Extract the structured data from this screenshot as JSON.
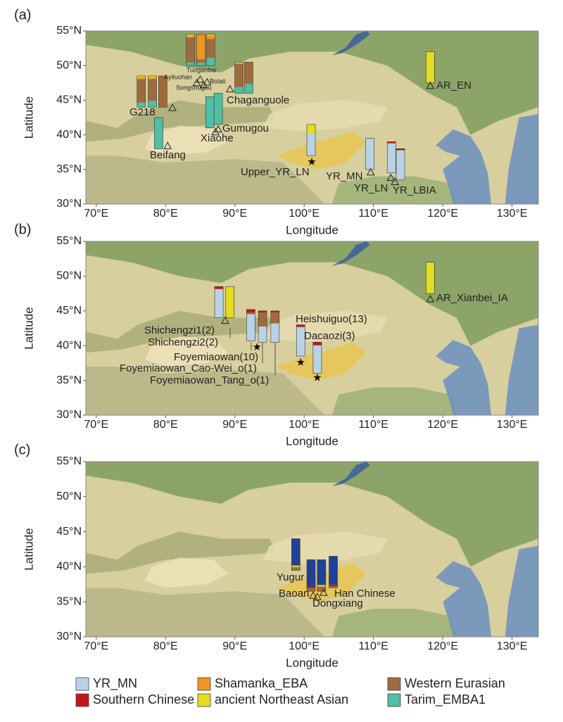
{
  "legend": [
    {
      "name": "YR_MN",
      "color": "#b9d3e6"
    },
    {
      "name": "Shamanka_EBA",
      "color": "#f39321"
    },
    {
      "name": "Western Eurasian",
      "color": "#a06b3c"
    },
    {
      "name": "Southern Chinese",
      "color": "#c4161c"
    },
    {
      "name": "ancient Northeast Asian",
      "color": "#e3dc21"
    },
    {
      "name": "Tarim_EMBA1",
      "color": "#4fbfa5"
    },
    {
      "name": null,
      "color": "#20409a"
    }
  ],
  "chart_data": [
    {
      "type": "map-bar",
      "panel": "(a)",
      "xlabel": "Longitude",
      "ylabel": "Latitude",
      "xlim": [
        68.5,
        133.8
      ],
      "ylim": [
        30,
        55
      ],
      "xticks": [
        {
          "value": 70,
          "label": "70°E"
        },
        {
          "value": 80,
          "label": "80°E"
        },
        {
          "value": 90,
          "label": "90°E"
        },
        {
          "value": 100,
          "label": "100°E"
        },
        {
          "value": 110,
          "label": "110°E"
        },
        {
          "value": 120,
          "label": "120°E"
        },
        {
          "value": 130,
          "label": "130°E"
        }
      ],
      "yticks": [
        {
          "value": 30,
          "label": "30°N"
        },
        {
          "value": 35,
          "label": "35°N"
        },
        {
          "value": 40,
          "label": "40°N"
        },
        {
          "value": 45,
          "label": "45°N"
        },
        {
          "value": 50,
          "label": "50°N"
        },
        {
          "value": 55,
          "label": "55°N"
        }
      ],
      "labels": [
        "Tuoganbai",
        "Ayituohan",
        "Bolati",
        "Songshugou",
        "G218",
        "Beifang",
        "Xiaohe",
        "Gumugou",
        "Chaganguole",
        "Upper_YR_LN",
        "YR_MN",
        "YR_LN",
        "YR_LBIA",
        "AR_EN"
      ],
      "markers": [
        {
          "x": 85,
          "y": 48,
          "shape": "triangle"
        },
        {
          "x": 84.5,
          "y": 47.5,
          "shape": "triangle"
        },
        {
          "x": 86,
          "y": 47.6,
          "shape": "triangle"
        },
        {
          "x": 85.5,
          "y": 47.2,
          "shape": "triangle"
        },
        {
          "x": 81,
          "y": 43.9,
          "shape": "triangle"
        },
        {
          "x": 80.3,
          "y": 38.4,
          "shape": "triangle"
        },
        {
          "x": 87.2,
          "y": 40.4,
          "shape": "triangle"
        },
        {
          "x": 87.6,
          "y": 40.8,
          "shape": "triangle"
        },
        {
          "x": 89.3,
          "y": 46.6,
          "shape": "triangle"
        },
        {
          "x": 101.1,
          "y": 36.1,
          "shape": "star"
        },
        {
          "x": 109.6,
          "y": 34.6,
          "shape": "triangle"
        },
        {
          "x": 112.5,
          "y": 33.8,
          "shape": "triangle"
        },
        {
          "x": 113.1,
          "y": 33.2,
          "shape": "triangle"
        },
        {
          "x": 118.2,
          "y": 47.1,
          "shape": "triangle"
        }
      ],
      "bars": [
        {
          "x": 76.5,
          "y": 44,
          "values": [
            0,
            0.05,
            0.75,
            0,
            0.05,
            0.15,
            0
          ]
        },
        {
          "x": 78.1,
          "y": 44,
          "values": [
            0,
            0.05,
            0.7,
            0,
            0.05,
            0.2,
            0
          ]
        },
        {
          "x": 79.6,
          "y": 44,
          "values": [
            0,
            0,
            1,
            0,
            0,
            0,
            0
          ]
        },
        {
          "x": 79.0,
          "y": 38,
          "values": [
            0,
            0,
            0,
            0,
            0,
            1,
            0
          ]
        },
        {
          "x": 83.6,
          "y": 50,
          "values": [
            0,
            0.05,
            0.8,
            0,
            0.05,
            0.1,
            0
          ]
        },
        {
          "x": 85.1,
          "y": 50,
          "values": [
            0,
            0.8,
            0.1,
            0,
            0,
            0.1,
            0
          ]
        },
        {
          "x": 86.5,
          "y": 50,
          "values": [
            0,
            0.1,
            0.6,
            0,
            0.05,
            0.25,
            0
          ]
        },
        {
          "x": 86.4,
          "y": 41,
          "values": [
            0,
            0,
            0,
            0,
            0,
            1,
            0
          ]
        },
        {
          "x": 87.6,
          "y": 41.5,
          "values": [
            0,
            0,
            0,
            0,
            0,
            1,
            0
          ]
        },
        {
          "x": 90.6,
          "y": 46,
          "values": [
            0,
            0,
            0.75,
            0,
            0.05,
            0.2,
            0
          ]
        },
        {
          "x": 92.0,
          "y": 46,
          "values": [
            0,
            0,
            0.7,
            0,
            0,
            0.3,
            0
          ]
        },
        {
          "x": 101.0,
          "y": 37,
          "values": [
            0.7,
            0,
            0,
            0,
            0.3,
            0,
            0
          ]
        },
        {
          "x": 109.5,
          "y": 35,
          "values": [
            1,
            0,
            0,
            0,
            0,
            0,
            0
          ]
        },
        {
          "x": 112.6,
          "y": 34.5,
          "values": [
            0.95,
            0,
            0,
            0.05,
            0,
            0,
            0
          ]
        },
        {
          "x": 113.9,
          "y": 33.5,
          "values": [
            0.95,
            0,
            0,
            0.05,
            0,
            0,
            0
          ]
        },
        {
          "x": 118.2,
          "y": 47.5,
          "values": [
            0,
            0,
            0,
            0,
            1,
            0,
            0
          ]
        }
      ]
    },
    {
      "type": "map-bar",
      "panel": "(b)",
      "xlabel": "Longitude",
      "ylabel": "Latitude",
      "xlim": [
        68.5,
        133.8
      ],
      "ylim": [
        30,
        55
      ],
      "xticks": [
        {
          "value": 70,
          "label": "70°E"
        },
        {
          "value": 80,
          "label": "80°E"
        },
        {
          "value": 90,
          "label": "90°E"
        },
        {
          "value": 100,
          "label": "100°E"
        },
        {
          "value": 110,
          "label": "110°E"
        },
        {
          "value": 120,
          "label": "120°E"
        },
        {
          "value": 130,
          "label": "130°E"
        }
      ],
      "yticks": [
        {
          "value": 30,
          "label": "30°N"
        },
        {
          "value": 35,
          "label": "35°N"
        },
        {
          "value": 40,
          "label": "40°N"
        },
        {
          "value": 45,
          "label": "45°N"
        },
        {
          "value": 50,
          "label": "50°N"
        },
        {
          "value": 55,
          "label": "55°N"
        }
      ],
      "labels": [
        "Shichengzi1(2)",
        "Shichengzi2(2)",
        "Heishuiguo(13)",
        "Dacaozi(3)",
        "Foyemiaowan(10)",
        "Foyemiaowan_Cao-Wei_o(1)",
        "Foyemiaowan_Tang_o(1)",
        "AR_Xianbei_IA"
      ],
      "markers": [
        {
          "x": 88.6,
          "y": 43.6,
          "shape": "triangle"
        },
        {
          "x": 93.2,
          "y": 39.8,
          "shape": "star"
        },
        {
          "x": 99.5,
          "y": 37.6,
          "shape": "star"
        },
        {
          "x": 101.9,
          "y": 35.4,
          "shape": "star"
        },
        {
          "x": 118.2,
          "y": 46.7,
          "shape": "triangle"
        }
      ],
      "bars": [
        {
          "x": 87.7,
          "y": 44,
          "values": [
            0.92,
            0,
            0,
            0.08,
            0,
            0,
            0
          ]
        },
        {
          "x": 89.3,
          "y": 44,
          "values": [
            0,
            0,
            0,
            0,
            1,
            0,
            0
          ]
        },
        {
          "x": 92.3,
          "y": 40.7,
          "values": [
            0.85,
            0,
            0.05,
            0.1,
            0,
            0,
            0
          ]
        },
        {
          "x": 94.0,
          "y": 40.5,
          "values": [
            0.5,
            0,
            0.45,
            0.05,
            0,
            0,
            0
          ]
        },
        {
          "x": 95.8,
          "y": 40.5,
          "values": [
            0.6,
            0,
            0.35,
            0.05,
            0,
            0,
            0
          ]
        },
        {
          "x": 99.5,
          "y": 38.5,
          "values": [
            0.93,
            0,
            0,
            0.07,
            0,
            0,
            0
          ]
        },
        {
          "x": 101.9,
          "y": 36,
          "values": [
            0.9,
            0,
            0,
            0.1,
            0,
            0,
            0
          ]
        },
        {
          "x": 118.2,
          "y": 47.5,
          "values": [
            0,
            0,
            0,
            0,
            1,
            0,
            0
          ]
        }
      ]
    },
    {
      "type": "map-bar",
      "panel": "(c)",
      "xlabel": "Longitude",
      "ylabel": "Latitude",
      "xlim": [
        68.5,
        133.8
      ],
      "ylim": [
        30,
        55
      ],
      "xticks": [
        {
          "value": 70,
          "label": "70°E"
        },
        {
          "value": 80,
          "label": "80°E"
        },
        {
          "value": 90,
          "label": "90°E"
        },
        {
          "value": 100,
          "label": "100°E"
        },
        {
          "value": 110,
          "label": "110°E"
        },
        {
          "value": 120,
          "label": "120°E"
        },
        {
          "value": 130,
          "label": "130°E"
        }
      ],
      "yticks": [
        {
          "value": 30,
          "label": "30°N"
        },
        {
          "value": 35,
          "label": "35°N"
        },
        {
          "value": 40,
          "label": "40°N"
        },
        {
          "value": 45,
          "label": "45°N"
        },
        {
          "value": 50,
          "label": "50°N"
        },
        {
          "value": 55,
          "label": "55°N"
        }
      ],
      "labels": [
        "Yugur",
        "Baoan",
        "Dongxiang",
        "Han Chinese"
      ],
      "markers": [
        {
          "x": 101.3,
          "y": 35.9,
          "shape": "triangle"
        },
        {
          "x": 101.9,
          "y": 35.7,
          "shape": "triangle"
        },
        {
          "x": 102.8,
          "y": 36.3,
          "shape": "triangle"
        }
      ],
      "bars": [
        {
          "x": 98.8,
          "y": 39.5,
          "values": [
            0,
            0,
            0.1,
            0,
            0.05,
            0,
            0.85
          ]
        },
        {
          "x": 101.0,
          "y": 36.5,
          "values": [
            0,
            0,
            0.1,
            0.05,
            0,
            0,
            0.85
          ]
        },
        {
          "x": 102.5,
          "y": 36.5,
          "values": [
            0,
            0,
            0.15,
            0,
            0.05,
            0,
            0.8
          ]
        },
        {
          "x": 104.2,
          "y": 37,
          "values": [
            0,
            0,
            0.05,
            0.05,
            0,
            0,
            0.9
          ]
        }
      ]
    }
  ]
}
